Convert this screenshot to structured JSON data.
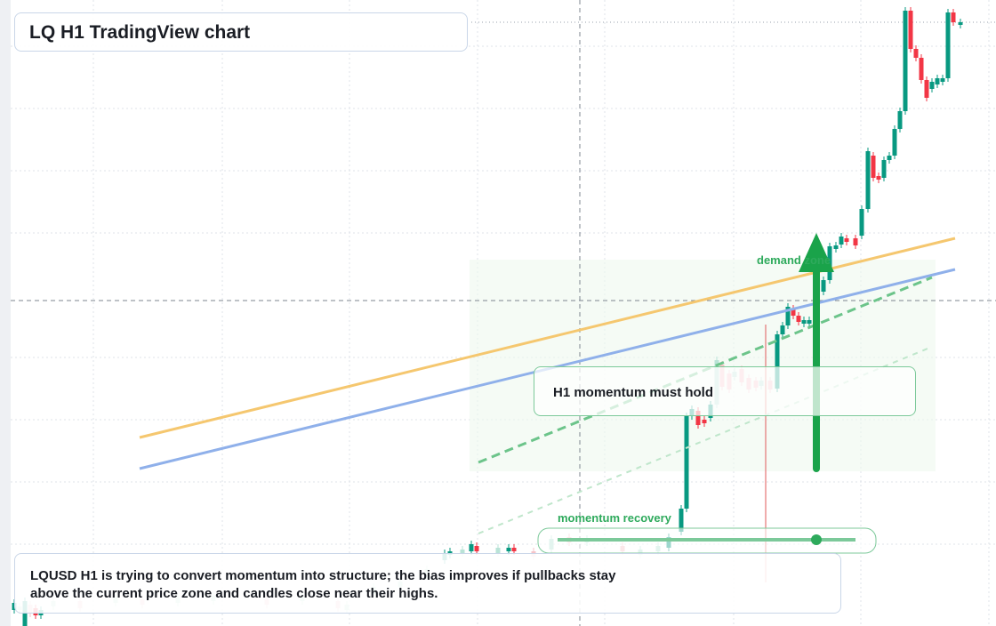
{
  "title": "LQ H1 TradingView chart",
  "annotations": {
    "demand": "demand zone",
    "momentum_hold": "H1 momentum must hold",
    "momentum_recovery": "momentum recovery"
  },
  "summary": "LQUSD H1 is trying to convert momentum into structure; the bias improves if pullbacks stay above the current price zone and candles close near their highs."
}
